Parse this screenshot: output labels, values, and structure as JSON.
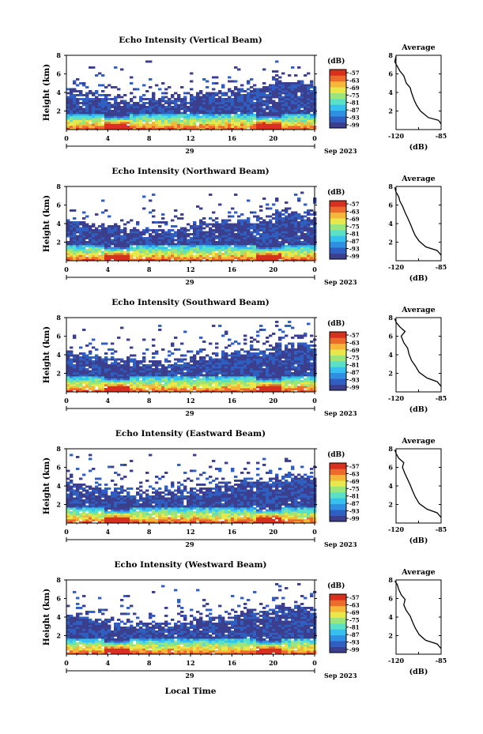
{
  "figure": {
    "xlabel": "Local Time",
    "date_label": "Sep 2023",
    "day_label": "29",
    "colorbar_unit": "(dB)",
    "colorbar_ticks": [
      "-57",
      "-63",
      "-69",
      "-75",
      "-81",
      "-87",
      "-93",
      "-99"
    ],
    "avg_title": "Average",
    "avg_xlabel": "(dB)",
    "colors": {
      "echo_min": "#3b3f8e",
      "echo_max": "#d7301f",
      "average_line": "#000000"
    }
  },
  "chart_data": [
    {
      "type": "heatmap",
      "title": "Echo Intensity (Vertical Beam)",
      "ylabel": "Height (km)",
      "xlim": [
        0,
        24
      ],
      "ylim": [
        0,
        8
      ],
      "x_ticks": [
        "0",
        "4",
        "8",
        "12",
        "16",
        "20",
        "0"
      ],
      "y_ticks": [
        "2",
        "4",
        "6",
        "8"
      ],
      "color_range_db": [
        -99,
        -57
      ],
      "average": {
        "title": "Average",
        "xlabel": "(dB)",
        "xlim": [
          -120,
          -85
        ],
        "x_ticks": [
          "-120",
          "-85"
        ],
        "y_ticks": [
          "2",
          "4",
          "6",
          "8"
        ],
        "x": [
          -85,
          -87,
          -95,
          -101,
          -104,
          -106,
          -108,
          -109,
          -112,
          -114,
          -117,
          -119,
          -121,
          -120
        ],
        "y": [
          0.6,
          1.0,
          1.3,
          2.0,
          2.6,
          3.2,
          4.0,
          4.5,
          5.0,
          5.8,
          6.3,
          6.8,
          7.3,
          7.9
        ]
      }
    },
    {
      "type": "heatmap",
      "title": "Echo Intensity (Northward Beam)",
      "ylabel": "Height (km)",
      "xlim": [
        0,
        24
      ],
      "ylim": [
        0,
        8
      ],
      "x_ticks": [
        "0",
        "4",
        "8",
        "12",
        "16",
        "20",
        "0"
      ],
      "y_ticks": [
        "2",
        "4",
        "6",
        "8"
      ],
      "color_range_db": [
        -99,
        -57
      ],
      "average": {
        "title": "Average",
        "xlabel": "(dB)",
        "xlim": [
          -120,
          -85
        ],
        "x_ticks": [
          "-120",
          "-85"
        ],
        "y_ticks": [
          "2",
          "4",
          "6",
          "8"
        ],
        "x": [
          -85,
          -88,
          -97,
          -102,
          -105,
          -107,
          -109,
          -111,
          -113,
          -115,
          -117,
          -118,
          -120,
          -121
        ],
        "y": [
          0.6,
          1.1,
          1.5,
          2.1,
          2.7,
          3.3,
          4.0,
          4.6,
          5.2,
          5.9,
          6.4,
          6.9,
          7.4,
          7.9
        ]
      }
    },
    {
      "type": "heatmap",
      "title": "Echo Intensity (Southward Beam)",
      "ylabel": "Height (km)",
      "xlim": [
        0,
        24
      ],
      "ylim": [
        0,
        8
      ],
      "x_ticks": [
        "0",
        "4",
        "8",
        "12",
        "16",
        "20",
        "0"
      ],
      "y_ticks": [
        "2",
        "4",
        "6",
        "8"
      ],
      "color_range_db": [
        -99,
        -57
      ],
      "average": {
        "title": "Average",
        "xlabel": "(dB)",
        "xlim": [
          -120,
          -85
        ],
        "x_ticks": [
          "-120",
          "-85"
        ],
        "y_ticks": [
          "2",
          "4",
          "6",
          "8"
        ],
        "x": [
          -85,
          -88,
          -96,
          -102,
          -105,
          -108,
          -110,
          -111,
          -114,
          -116,
          -113,
          -117,
          -120,
          -121
        ],
        "y": [
          0.6,
          1.1,
          1.5,
          2.1,
          2.8,
          3.4,
          4.1,
          4.7,
          5.3,
          6.0,
          6.5,
          7.0,
          7.5,
          7.9
        ]
      }
    },
    {
      "type": "heatmap",
      "title": "Echo Intensity (Eastward Beam)",
      "ylabel": "Height (km)",
      "xlim": [
        0,
        24
      ],
      "ylim": [
        0,
        8
      ],
      "x_ticks": [
        "0",
        "4",
        "8",
        "12",
        "16",
        "20",
        "0"
      ],
      "y_ticks": [
        "2",
        "4",
        "6",
        "8"
      ],
      "color_range_db": [
        -99,
        -57
      ],
      "average": {
        "title": "Average",
        "xlabel": "(dB)",
        "xlim": [
          -120,
          -85
        ],
        "x_ticks": [
          "-120",
          "-85"
        ],
        "y_ticks": [
          "2",
          "4",
          "6",
          "8"
        ],
        "x": [
          -85,
          -88,
          -96,
          -102,
          -105,
          -107,
          -109,
          -111,
          -113,
          -115,
          -114,
          -118,
          -120,
          -121
        ],
        "y": [
          0.6,
          1.1,
          1.5,
          2.1,
          2.8,
          3.4,
          4.1,
          4.7,
          5.3,
          6.0,
          6.5,
          7.0,
          7.5,
          7.9
        ]
      }
    },
    {
      "type": "heatmap",
      "title": "Echo Intensity (Westward Beam)",
      "ylabel": "Height (km)",
      "xlim": [
        0,
        24
      ],
      "ylim": [
        0,
        8
      ],
      "x_ticks": [
        "0",
        "4",
        "8",
        "12",
        "16",
        "20",
        "0"
      ],
      "y_ticks": [
        "2",
        "4",
        "6",
        "8"
      ],
      "color_range_db": [
        -99,
        -57
      ],
      "average": {
        "title": "Average",
        "xlabel": "(dB)",
        "xlim": [
          -120,
          -85
        ],
        "x_ticks": [
          "-120",
          "-85"
        ],
        "y_ticks": [
          "2",
          "4",
          "6",
          "8"
        ],
        "x": [
          -85,
          -88,
          -97,
          -102,
          -105,
          -107,
          -109,
          -112,
          -114,
          -113,
          -116,
          -118,
          -119,
          -121
        ],
        "y": [
          0.6,
          1.1,
          1.5,
          2.1,
          2.8,
          3.4,
          4.1,
          4.7,
          5.3,
          5.9,
          6.4,
          7.0,
          7.5,
          7.9
        ]
      }
    }
  ]
}
